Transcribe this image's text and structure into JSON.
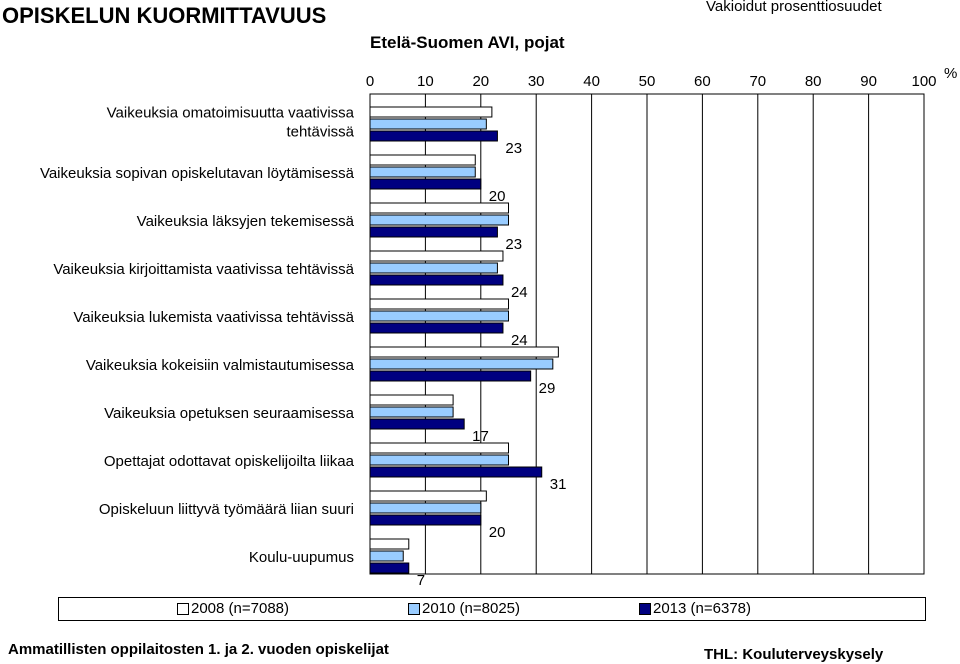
{
  "header": {
    "title": "OPISKELUN KUORMITTAVUUS",
    "subtitle": "Etelä-Suomen AVI, pojat",
    "note": "Vakioidut prosenttiosuudet"
  },
  "footer": {
    "left": "Ammatillisten oppilaitosten 1. ja 2. vuoden opiskelijat",
    "right": "THL: Kouluterveyskysely"
  },
  "colors": {
    "2008": "#ffffff",
    "2010": "#99ccff",
    "2013": "#000080",
    "outline": "#000000"
  },
  "chart_data": {
    "type": "bar",
    "orientation": "horizontal",
    "unit_label": "%",
    "xlim": [
      0,
      100
    ],
    "x_ticks": [
      "0",
      "10",
      "20",
      "30",
      "40",
      "50",
      "60",
      "70",
      "80",
      "90",
      "100"
    ],
    "categories": [
      [
        "Vaikeuksia omatoimisuutta vaativissa",
        "tehtävissä"
      ],
      [
        "Vaikeuksia sopivan opiskelutavan löytämisessä"
      ],
      [
        "Vaikeuksia läksyjen tekemisessä"
      ],
      [
        "Vaikeuksia kirjoittamista vaativissa tehtävissä"
      ],
      [
        "Vaikeuksia lukemista vaativissa tehtävissä"
      ],
      [
        "Vaikeuksia kokeisiin valmistautumisessa"
      ],
      [
        "Vaikeuksia opetuksen seuraamisessa"
      ],
      [
        "Opettajat odottavat opiskelijoilta liikaa"
      ],
      [
        "Opiskeluun liittyvä työmäärä liian suuri"
      ],
      [
        "Koulu-uupumus"
      ]
    ],
    "series": [
      {
        "name": "2008 (n=7088)",
        "values": [
          22,
          19,
          25,
          24,
          25,
          34,
          15,
          25,
          21,
          7
        ]
      },
      {
        "name": "2010 (n=8025)",
        "values": [
          21,
          19,
          25,
          23,
          25,
          33,
          15,
          25,
          20,
          6
        ]
      },
      {
        "name": "2013 (n=6378)",
        "values": [
          23,
          20,
          23,
          24,
          24,
          29,
          17,
          31,
          20,
          7
        ]
      }
    ],
    "data_labels_series": 2,
    "legend_position": "bottom",
    "grid": "vertical"
  }
}
